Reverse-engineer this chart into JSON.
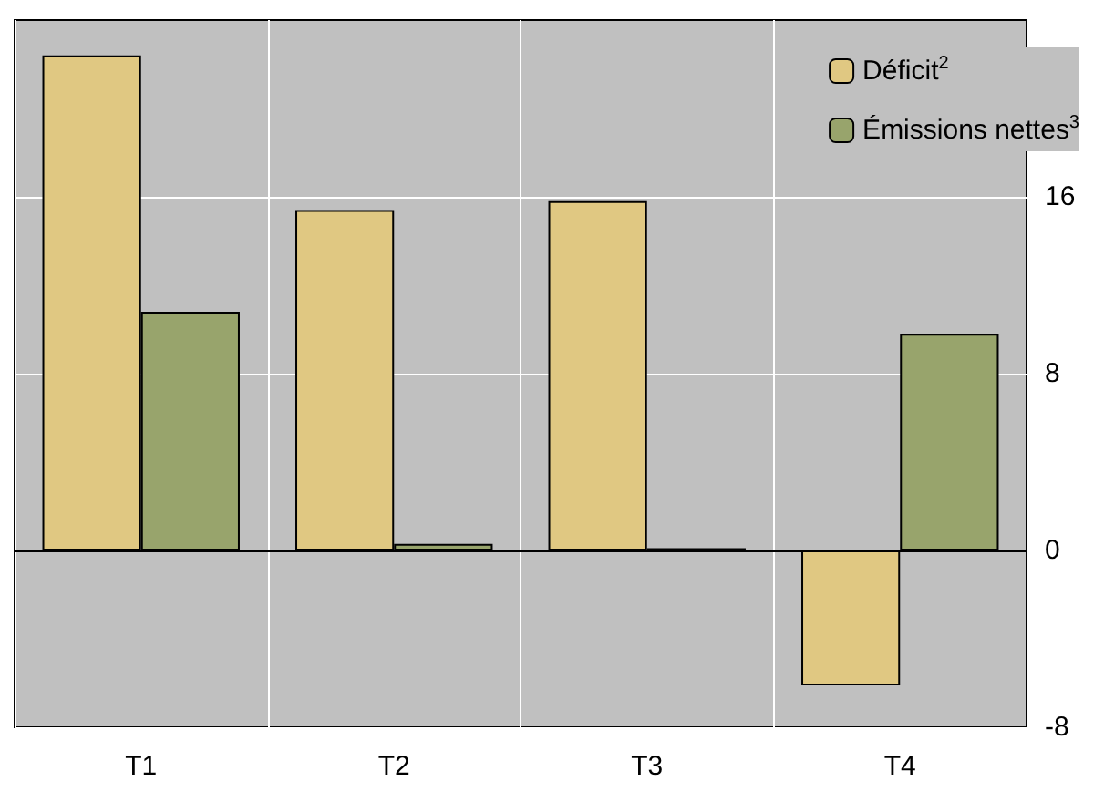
{
  "chart_data": {
    "type": "bar",
    "categories": [
      "T1",
      "T2",
      "T3",
      "T4"
    ],
    "series": [
      {
        "name": "Déficit$^{2}$",
        "color": "#e0c882",
        "values": [
          22.4,
          15.4,
          15.8,
          -6.1
        ]
      },
      {
        "name": "Émissions nettes$^{3}$",
        "color": "#98a46c",
        "values": [
          10.8,
          0.3,
          0.1,
          9.8
        ]
      }
    ],
    "ylim": [
      -8,
      24
    ],
    "yticks": [
      -8,
      0,
      8,
      16
    ],
    "grid": true,
    "legend": "top right"
  }
}
